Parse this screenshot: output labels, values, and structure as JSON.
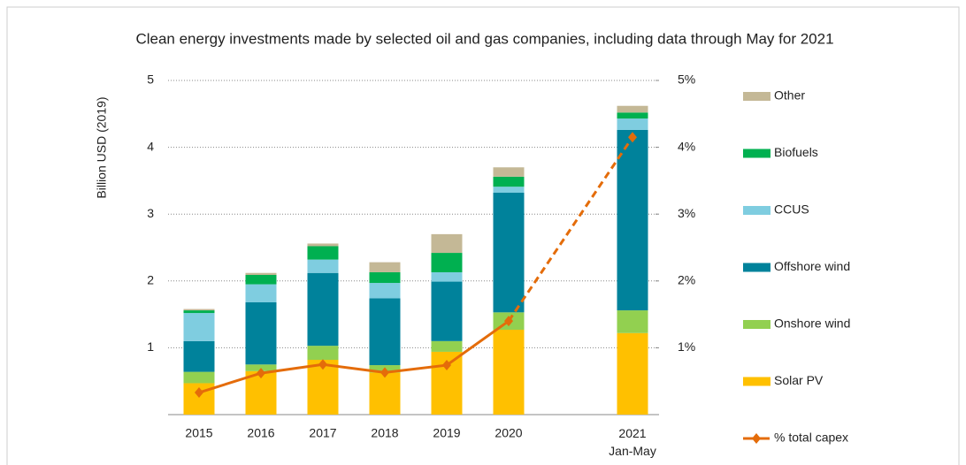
{
  "chart_data": {
    "type": "bar",
    "stacked": true,
    "title": "Clean energy investments made by selected oil and gas companies, including data through May for 2021",
    "ylabel": "Billion USD (2019)",
    "categories": [
      "2015",
      "2016",
      "2017",
      "2018",
      "2019",
      "2020",
      "2021\nJan-May"
    ],
    "series": [
      {
        "name": "Solar PV",
        "color": "#ffc000",
        "values": [
          0.47,
          0.65,
          0.82,
          0.63,
          0.94,
          1.27,
          1.22
        ]
      },
      {
        "name": "Onshore wind",
        "color": "#92d050",
        "values": [
          0.17,
          0.1,
          0.21,
          0.11,
          0.16,
          0.26,
          0.34
        ]
      },
      {
        "name": "Offshore wind",
        "color": "#00829b",
        "values": [
          0.46,
          0.93,
          1.09,
          1.0,
          0.89,
          1.79,
          2.7
        ]
      },
      {
        "name": "CCUS",
        "color": "#7fcde0",
        "values": [
          0.42,
          0.27,
          0.2,
          0.23,
          0.14,
          0.09,
          0.17
        ]
      },
      {
        "name": "Biofuels",
        "color": "#00b050",
        "values": [
          0.04,
          0.14,
          0.2,
          0.16,
          0.29,
          0.15,
          0.09
        ]
      },
      {
        "name": "Other",
        "color": "#c4b896",
        "values": [
          0.02,
          0.03,
          0.04,
          0.15,
          0.28,
          0.14,
          0.1
        ]
      },
      {
        "name": "% total capex",
        "color": "#e46c0a",
        "type": "line",
        "axis": "y2",
        "values": [
          0.33,
          0.62,
          0.75,
          0.63,
          0.74,
          1.4,
          4.15
        ]
      }
    ],
    "ylim": [
      0,
      5
    ],
    "yticks": [
      1,
      2,
      3,
      4,
      5
    ],
    "y2lim": [
      0,
      5
    ],
    "y2ticks": [
      {
        "value": 1,
        "label": "1%"
      },
      {
        "value": 2,
        "label": "2%"
      },
      {
        "value": 3,
        "label": "3%"
      },
      {
        "value": 4,
        "label": "4%"
      },
      {
        "value": 5,
        "label": "5%"
      }
    ],
    "grid": true,
    "legend": "right"
  }
}
